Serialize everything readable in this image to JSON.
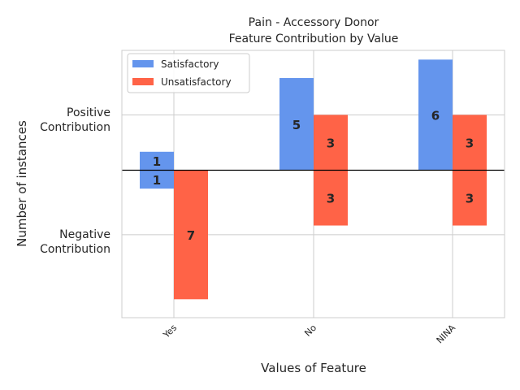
{
  "chart_data": {
    "type": "bar",
    "title_line1": "Pain - Accessory Donor",
    "title_line2": "Feature Contribution by Value",
    "xlabel": "Values of Feature",
    "ylabel": "Number of instances",
    "categories": [
      "Yes",
      "No",
      "NINA"
    ],
    "ytick_labels": {
      "positive_line1": "Positive",
      "positive_line2": "Contribution",
      "negative_line1": "Negative",
      "negative_line2": "Contribution"
    },
    "series": [
      {
        "name": "Satisfactory",
        "color": "#6495ed",
        "positive": [
          1,
          5,
          6
        ],
        "negative": [
          1,
          0,
          0
        ]
      },
      {
        "name": "Unsatisfactory",
        "color": "#ff6347",
        "positive": [
          0,
          3,
          3
        ],
        "negative": [
          7,
          3,
          3
        ]
      }
    ],
    "ylim": [
      -8,
      6.5
    ],
    "legend_position": "top-left",
    "grid": true
  }
}
